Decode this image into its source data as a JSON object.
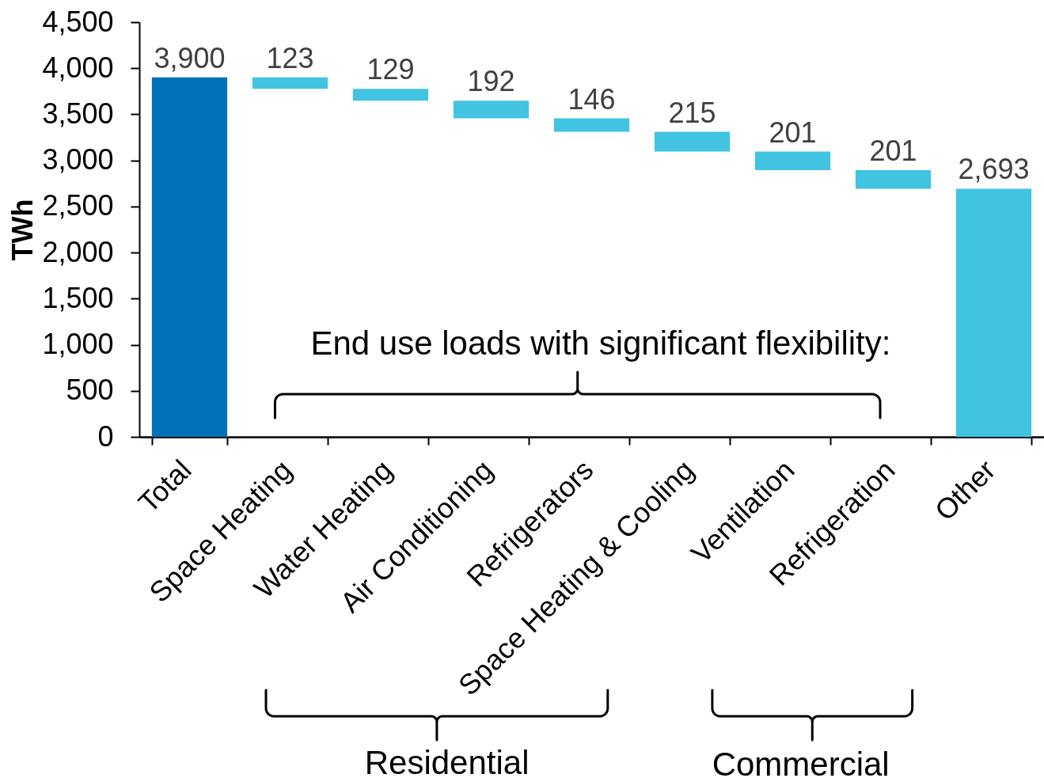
{
  "chart_data": {
    "type": "bar",
    "ylabel": "TWh",
    "categories": [
      "Total",
      "Space Heating",
      "Water Heating",
      "Air Conditioning",
      "Refrigerators",
      "Space Heating & Cooling",
      "Ventilation",
      "Refrigeration",
      "Other"
    ],
    "values": [
      3900,
      123,
      129,
      192,
      146,
      215,
      201,
      201,
      2693
    ],
    "base": [
      0,
      3777,
      3648,
      3456,
      3310,
      3095,
      2894,
      2693,
      0
    ],
    "colors": [
      "#0070b8",
      "#42c3e2",
      "#42c3e2",
      "#42c3e2",
      "#42c3e2",
      "#42c3e2",
      "#42c3e2",
      "#42c3e2",
      "#42c3e2"
    ],
    "value_labels": [
      "3,900",
      "123",
      "129",
      "192",
      "146",
      "215",
      "201",
      "201",
      "2,693"
    ],
    "ylim": [
      0,
      4500
    ],
    "yticks": [
      {
        "value": 0,
        "label": "0"
      },
      {
        "value": 500,
        "label": "500"
      },
      {
        "value": 1000,
        "label": "1,000"
      },
      {
        "value": 1500,
        "label": "1,500"
      },
      {
        "value": 2000,
        "label": "2,000"
      },
      {
        "value": 2500,
        "label": "2,500"
      },
      {
        "value": 3000,
        "label": "3,000"
      },
      {
        "value": 3500,
        "label": "3,500"
      },
      {
        "value": 4000,
        "label": "4,000"
      },
      {
        "value": 4500,
        "label": "4,500"
      }
    ],
    "annotations": [
      "End use loads with significant flexibility:",
      "Residential",
      "Commercial"
    ]
  }
}
